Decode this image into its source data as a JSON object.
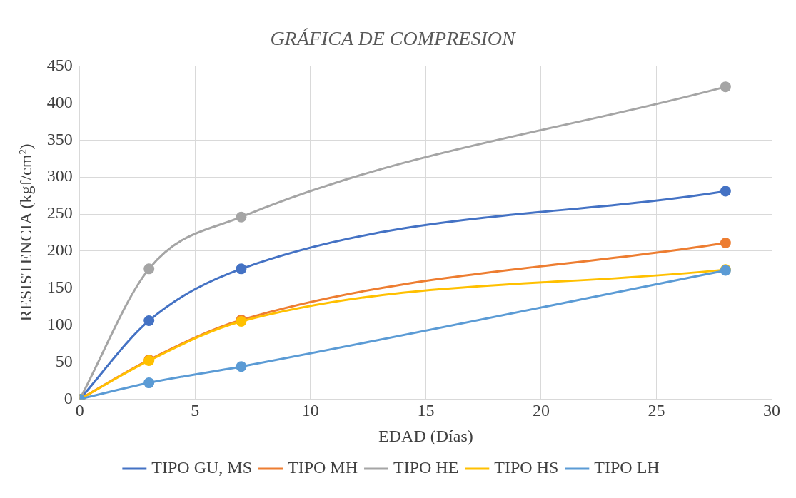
{
  "chart_data": {
    "type": "line",
    "title": "GRÁFICA DE COMPRESION",
    "xlabel": "EDAD (Días)",
    "ylabel": "RESISTENCIA (kgf/cm²)",
    "x": [
      0,
      3,
      7,
      28
    ],
    "series": [
      {
        "name": "TIPO GU, MS",
        "color": "#4472c4",
        "values": [
          0,
          106,
          176,
          281
        ]
      },
      {
        "name": "TIPO MH",
        "color": "#ed7d31",
        "values": [
          0,
          53,
          107,
          211
        ]
      },
      {
        "name": "TIPO HE",
        "color": "#a5a5a5",
        "values": [
          0,
          176,
          246,
          422
        ]
      },
      {
        "name": "TIPO HS",
        "color": "#ffc000",
        "values": [
          0,
          52,
          105,
          175
        ]
      },
      {
        "name": "TIPO LH",
        "color": "#5b9bd5",
        "values": [
          0,
          22,
          44,
          174
        ]
      }
    ],
    "xlim": [
      0,
      30
    ],
    "xticks": [
      0,
      5,
      10,
      15,
      20,
      25,
      30
    ],
    "ylim": [
      0,
      450
    ],
    "yticks": [
      0,
      50,
      100,
      150,
      200,
      250,
      300,
      350,
      400,
      450
    ],
    "grid": true,
    "legend": "bottom",
    "marker": "circle",
    "line_style": "solid"
  }
}
